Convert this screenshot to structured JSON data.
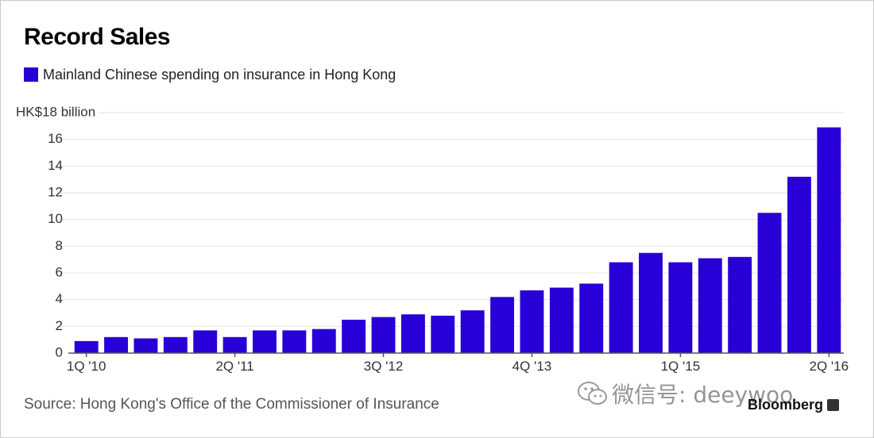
{
  "chart_data": {
    "type": "bar",
    "title": "Record Sales",
    "legend": "Mainland Chinese spending on insurance in Hong Kong",
    "ylabel_unit": "HK$18 billion",
    "ylim": [
      0,
      18
    ],
    "y_ticks": [
      0,
      2,
      4,
      6,
      8,
      10,
      12,
      14,
      16
    ],
    "x_tick_labels": [
      "1Q '10",
      "2Q '11",
      "3Q '12",
      "4Q '13",
      "1Q '15",
      "2Q '16"
    ],
    "x_tick_indices": [
      0,
      5,
      10,
      15,
      20,
      25
    ],
    "categories": [
      "1Q '10",
      "2Q '10",
      "3Q '10",
      "4Q '10",
      "1Q '11",
      "2Q '11",
      "3Q '11",
      "4Q '11",
      "1Q '12",
      "2Q '12",
      "3Q '12",
      "4Q '12",
      "1Q '13",
      "2Q '13",
      "3Q '13",
      "4Q '13",
      "1Q '14",
      "2Q '14",
      "3Q '14",
      "4Q '14",
      "1Q '15",
      "2Q '15",
      "3Q '15",
      "4Q '15",
      "1Q '16",
      "2Q '16"
    ],
    "series": [
      {
        "name": "Mainland Chinese spending on insurance in Hong Kong",
        "values": [
          0.9,
          1.2,
          1.1,
          1.2,
          1.7,
          1.2,
          1.7,
          1.7,
          1.8,
          2.5,
          2.7,
          2.9,
          2.8,
          3.2,
          4.2,
          4.7,
          4.9,
          5.2,
          6.8,
          7.5,
          6.8,
          7.1,
          7.2,
          10.5,
          13.2,
          16.9
        ]
      }
    ],
    "grid": true,
    "colors": {
      "bar": "#2800d7",
      "grid": "#e3e3e3",
      "axis": "#555555",
      "tick_text": "#333333"
    }
  },
  "source": "Source: Hong Kong's Office of the Commissioner of Insurance",
  "brand": "Bloomberg",
  "watermark": "微信号: deeywoo"
}
